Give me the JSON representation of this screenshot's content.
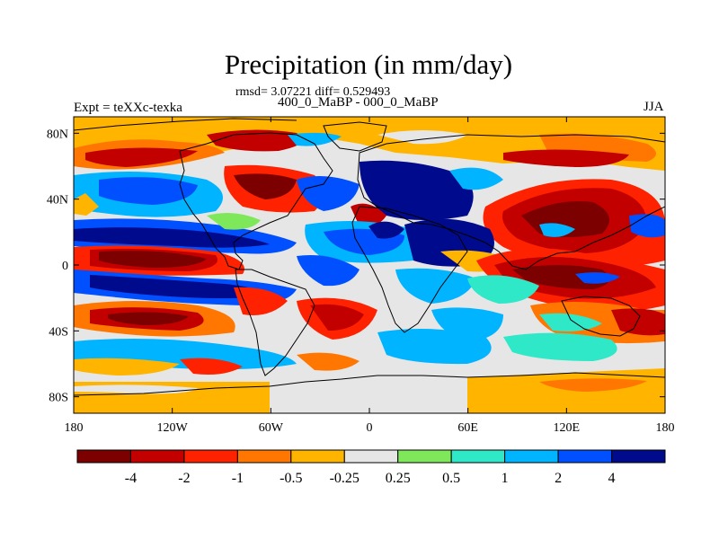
{
  "title": "Precipitation (in mm/day)",
  "stats_text": "rmsd= 3.07221  diff= 0.529493",
  "subtitle": "400_0_MaBP - 000_0_MaBP",
  "left_label": "Expt = teXXc-texka",
  "right_label": "JJA",
  "axes": {
    "lon_ticks": [
      {
        "value": -180,
        "label": "180"
      },
      {
        "value": -120,
        "label": "120W"
      },
      {
        "value": -60,
        "label": "60W"
      },
      {
        "value": 0,
        "label": "0"
      },
      {
        "value": 60,
        "label": "60E"
      },
      {
        "value": 120,
        "label": "120E"
      },
      {
        "value": 180,
        "label": "180"
      }
    ],
    "lat_ticks": [
      {
        "value": 80,
        "label": "80N"
      },
      {
        "value": 40,
        "label": "40N"
      },
      {
        "value": 0,
        "label": "0"
      },
      {
        "value": -40,
        "label": "40S"
      },
      {
        "value": -80,
        "label": "80S"
      }
    ],
    "lon_range": [
      -180,
      180
    ],
    "lat_range": [
      -90,
      90
    ]
  },
  "colorbar": {
    "colors": [
      "#7d0000",
      "#c30000",
      "#ff2200",
      "#ff7700",
      "#ffb400",
      "#e6e6e6",
      "#7fe85a",
      "#2ee8c8",
      "#00b4ff",
      "#0050ff",
      "#000a8c"
    ],
    "labels": [
      "-4",
      "-2",
      "-1",
      "-0.5",
      "-0.25",
      "0.25",
      "0.5",
      "1",
      "2",
      "4"
    ]
  }
}
